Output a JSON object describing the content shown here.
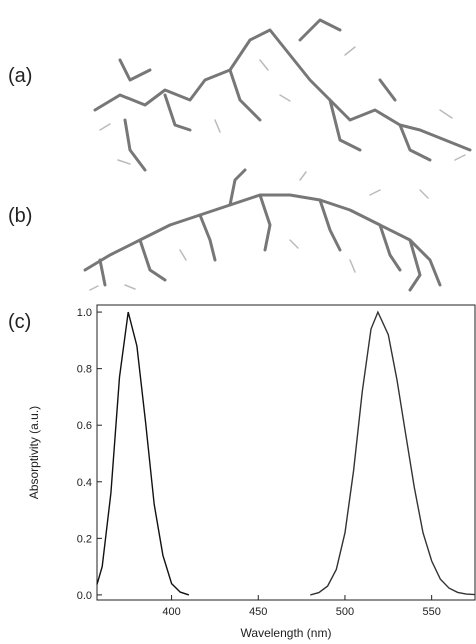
{
  "panels": [
    "(a)",
    "(b)",
    "(c)"
  ],
  "chart_data": {
    "type": "line",
    "xlabel": "Wavelength (nm)",
    "ylabel": "Absorptivity (a.u.)",
    "xlim": [
      357,
      575
    ],
    "xticks": [
      400,
      450,
      500,
      550
    ],
    "ylim": [
      -0.018,
      1.025
    ],
    "yticks": [
      {
        "value": 0,
        "label": "0.0"
      },
      0.2,
      0.4,
      0.6,
      0.8,
      {
        "value": 1,
        "label": "1.0"
      }
    ],
    "series": [
      {
        "color": "#111111",
        "x": [
          357,
          360,
          365,
          370,
          375,
          380,
          385,
          390,
          395,
          400,
          405,
          410
        ],
        "values": [
          0.037,
          0.1,
          0.36,
          0.77,
          1,
          0.88,
          0.61,
          0.32,
          0.14,
          0.04,
          0.01,
          0
        ]
      },
      {
        "color": "#333333",
        "x": [
          480,
          485,
          490,
          495,
          500,
          505,
          510,
          515,
          519,
          525,
          530,
          535,
          540,
          545,
          550,
          555,
          560,
          565,
          570,
          575
        ],
        "values": [
          0,
          0.008,
          0.031,
          0.09,
          0.22,
          0.44,
          0.72,
          0.94,
          1,
          0.92,
          0.76,
          0.57,
          0.38,
          0.22,
          0.12,
          0.056,
          0.024,
          0.009,
          0.003,
          0.001
        ]
      }
    ]
  }
}
